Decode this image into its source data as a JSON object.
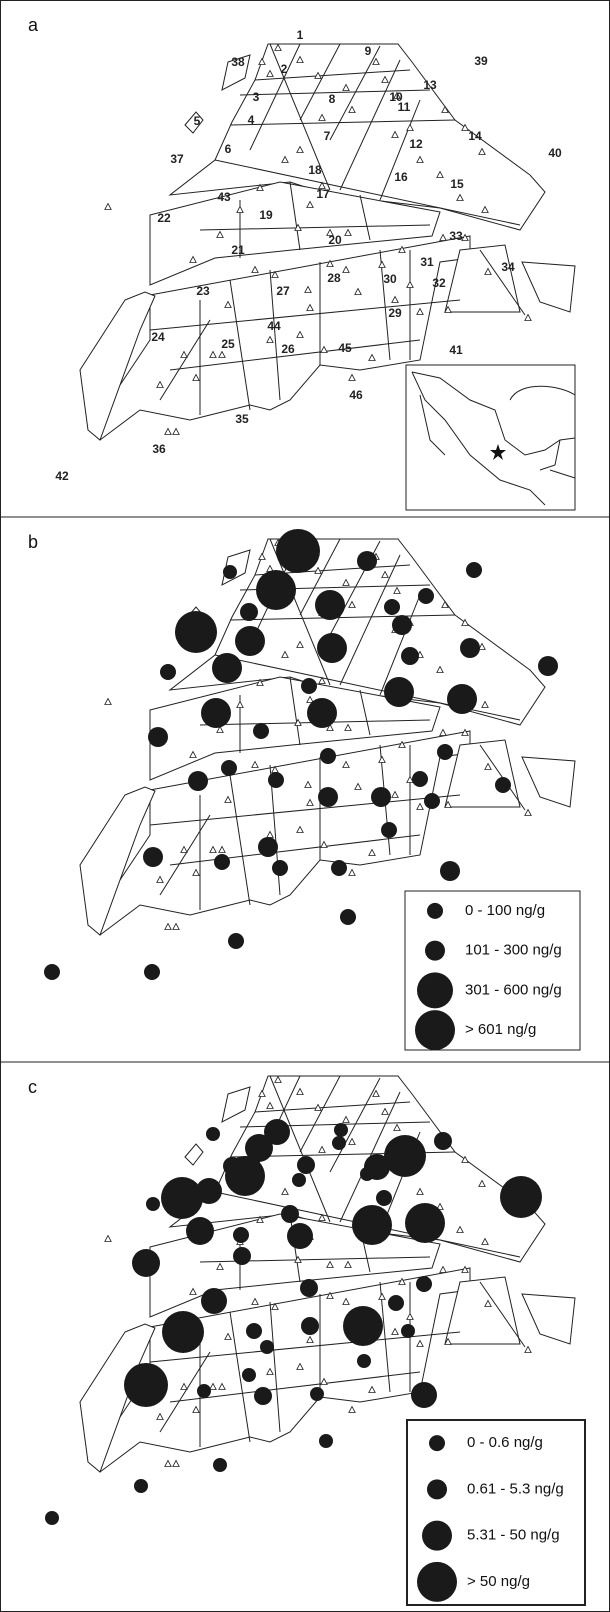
{
  "panels": [
    {
      "label": "a",
      "site_labels": [
        "1",
        "2",
        "3",
        "4",
        "5",
        "6",
        "7",
        "8",
        "9",
        "10",
        "11",
        "12",
        "13",
        "14",
        "15",
        "16",
        "17",
        "18",
        "19",
        "20",
        "21",
        "22",
        "23",
        "24",
        "25",
        "26",
        "27",
        "28",
        "29",
        "30",
        "31",
        "32",
        "33",
        "34",
        "35",
        "36",
        "37",
        "38",
        "39",
        "40",
        "41",
        "42",
        "43",
        "44",
        "45",
        "46"
      ]
    },
    {
      "label": "b",
      "legend": [
        "0 - 100 ng/g",
        "101 - 300 ng/g",
        "301 - 600 ng/g",
        "> 601 ng/g"
      ]
    },
    {
      "label": "c",
      "legend": [
        "0 - 0.6 ng/g",
        "0.61 - 5.3 ng/g",
        "5.31 - 50 ng/g",
        "> 50 ng/g"
      ]
    }
  ]
}
